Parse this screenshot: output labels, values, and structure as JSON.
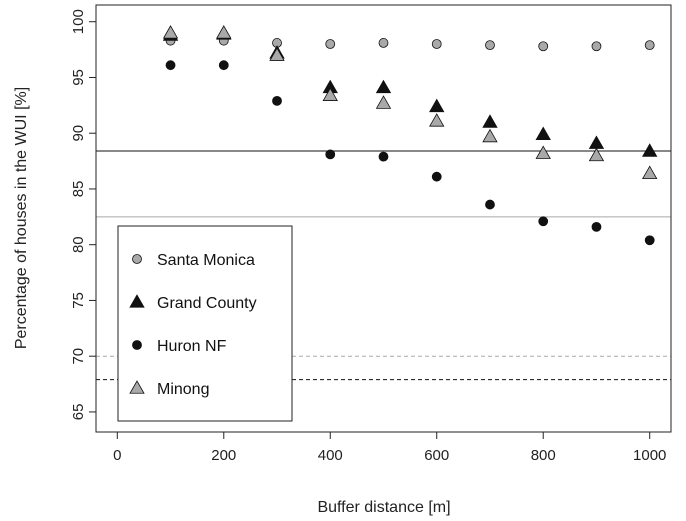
{
  "chart_data": {
    "type": "scatter",
    "title": "",
    "xlabel": "Buffer distance [m]",
    "ylabel": "Percentage of houses in the WUI [%]",
    "xlim": [
      -40,
      1040
    ],
    "ylim": [
      63.2,
      101.5
    ],
    "xticks": [
      0,
      200,
      400,
      600,
      800,
      1000
    ],
    "yticks": [
      65,
      70,
      75,
      80,
      85,
      90,
      95,
      100
    ],
    "x": [
      100,
      200,
      300,
      400,
      500,
      600,
      700,
      800,
      900,
      1000
    ],
    "series": [
      {
        "name": "Santa Monica",
        "marker": "circle",
        "color": "#a9a9a9",
        "values": [
          98.3,
          98.3,
          98.1,
          98.0,
          98.1,
          98.0,
          97.9,
          97.8,
          97.8,
          97.9
        ]
      },
      {
        "name": "Grand County",
        "marker": "triangle",
        "color": "#111111",
        "values": [
          98.8,
          98.9,
          97.2,
          94.1,
          94.1,
          92.4,
          91.0,
          89.9,
          89.1,
          88.4
        ]
      },
      {
        "name": "Huron NF",
        "marker": "circle",
        "color": "#111111",
        "values": [
          96.1,
          96.1,
          92.9,
          88.1,
          87.9,
          86.1,
          83.6,
          82.1,
          81.6,
          80.4
        ]
      },
      {
        "name": "Minong",
        "marker": "triangle",
        "color": "#a9a9a9",
        "values": [
          99.0,
          99.0,
          97.0,
          93.4,
          92.7,
          91.1,
          89.7,
          88.2,
          88.0,
          86.4
        ]
      }
    ],
    "reference_lines": [
      {
        "value": 88.4,
        "style": "solid",
        "color": "#111111"
      },
      {
        "value": 82.5,
        "style": "solid",
        "color": "#a9a9a9"
      },
      {
        "value": 70.0,
        "style": "dashed",
        "color": "#a9a9a9"
      },
      {
        "value": 67.9,
        "style": "dashed",
        "color": "#111111"
      }
    ],
    "legend": {
      "placement": "bottom-left"
    },
    "grid": false
  }
}
